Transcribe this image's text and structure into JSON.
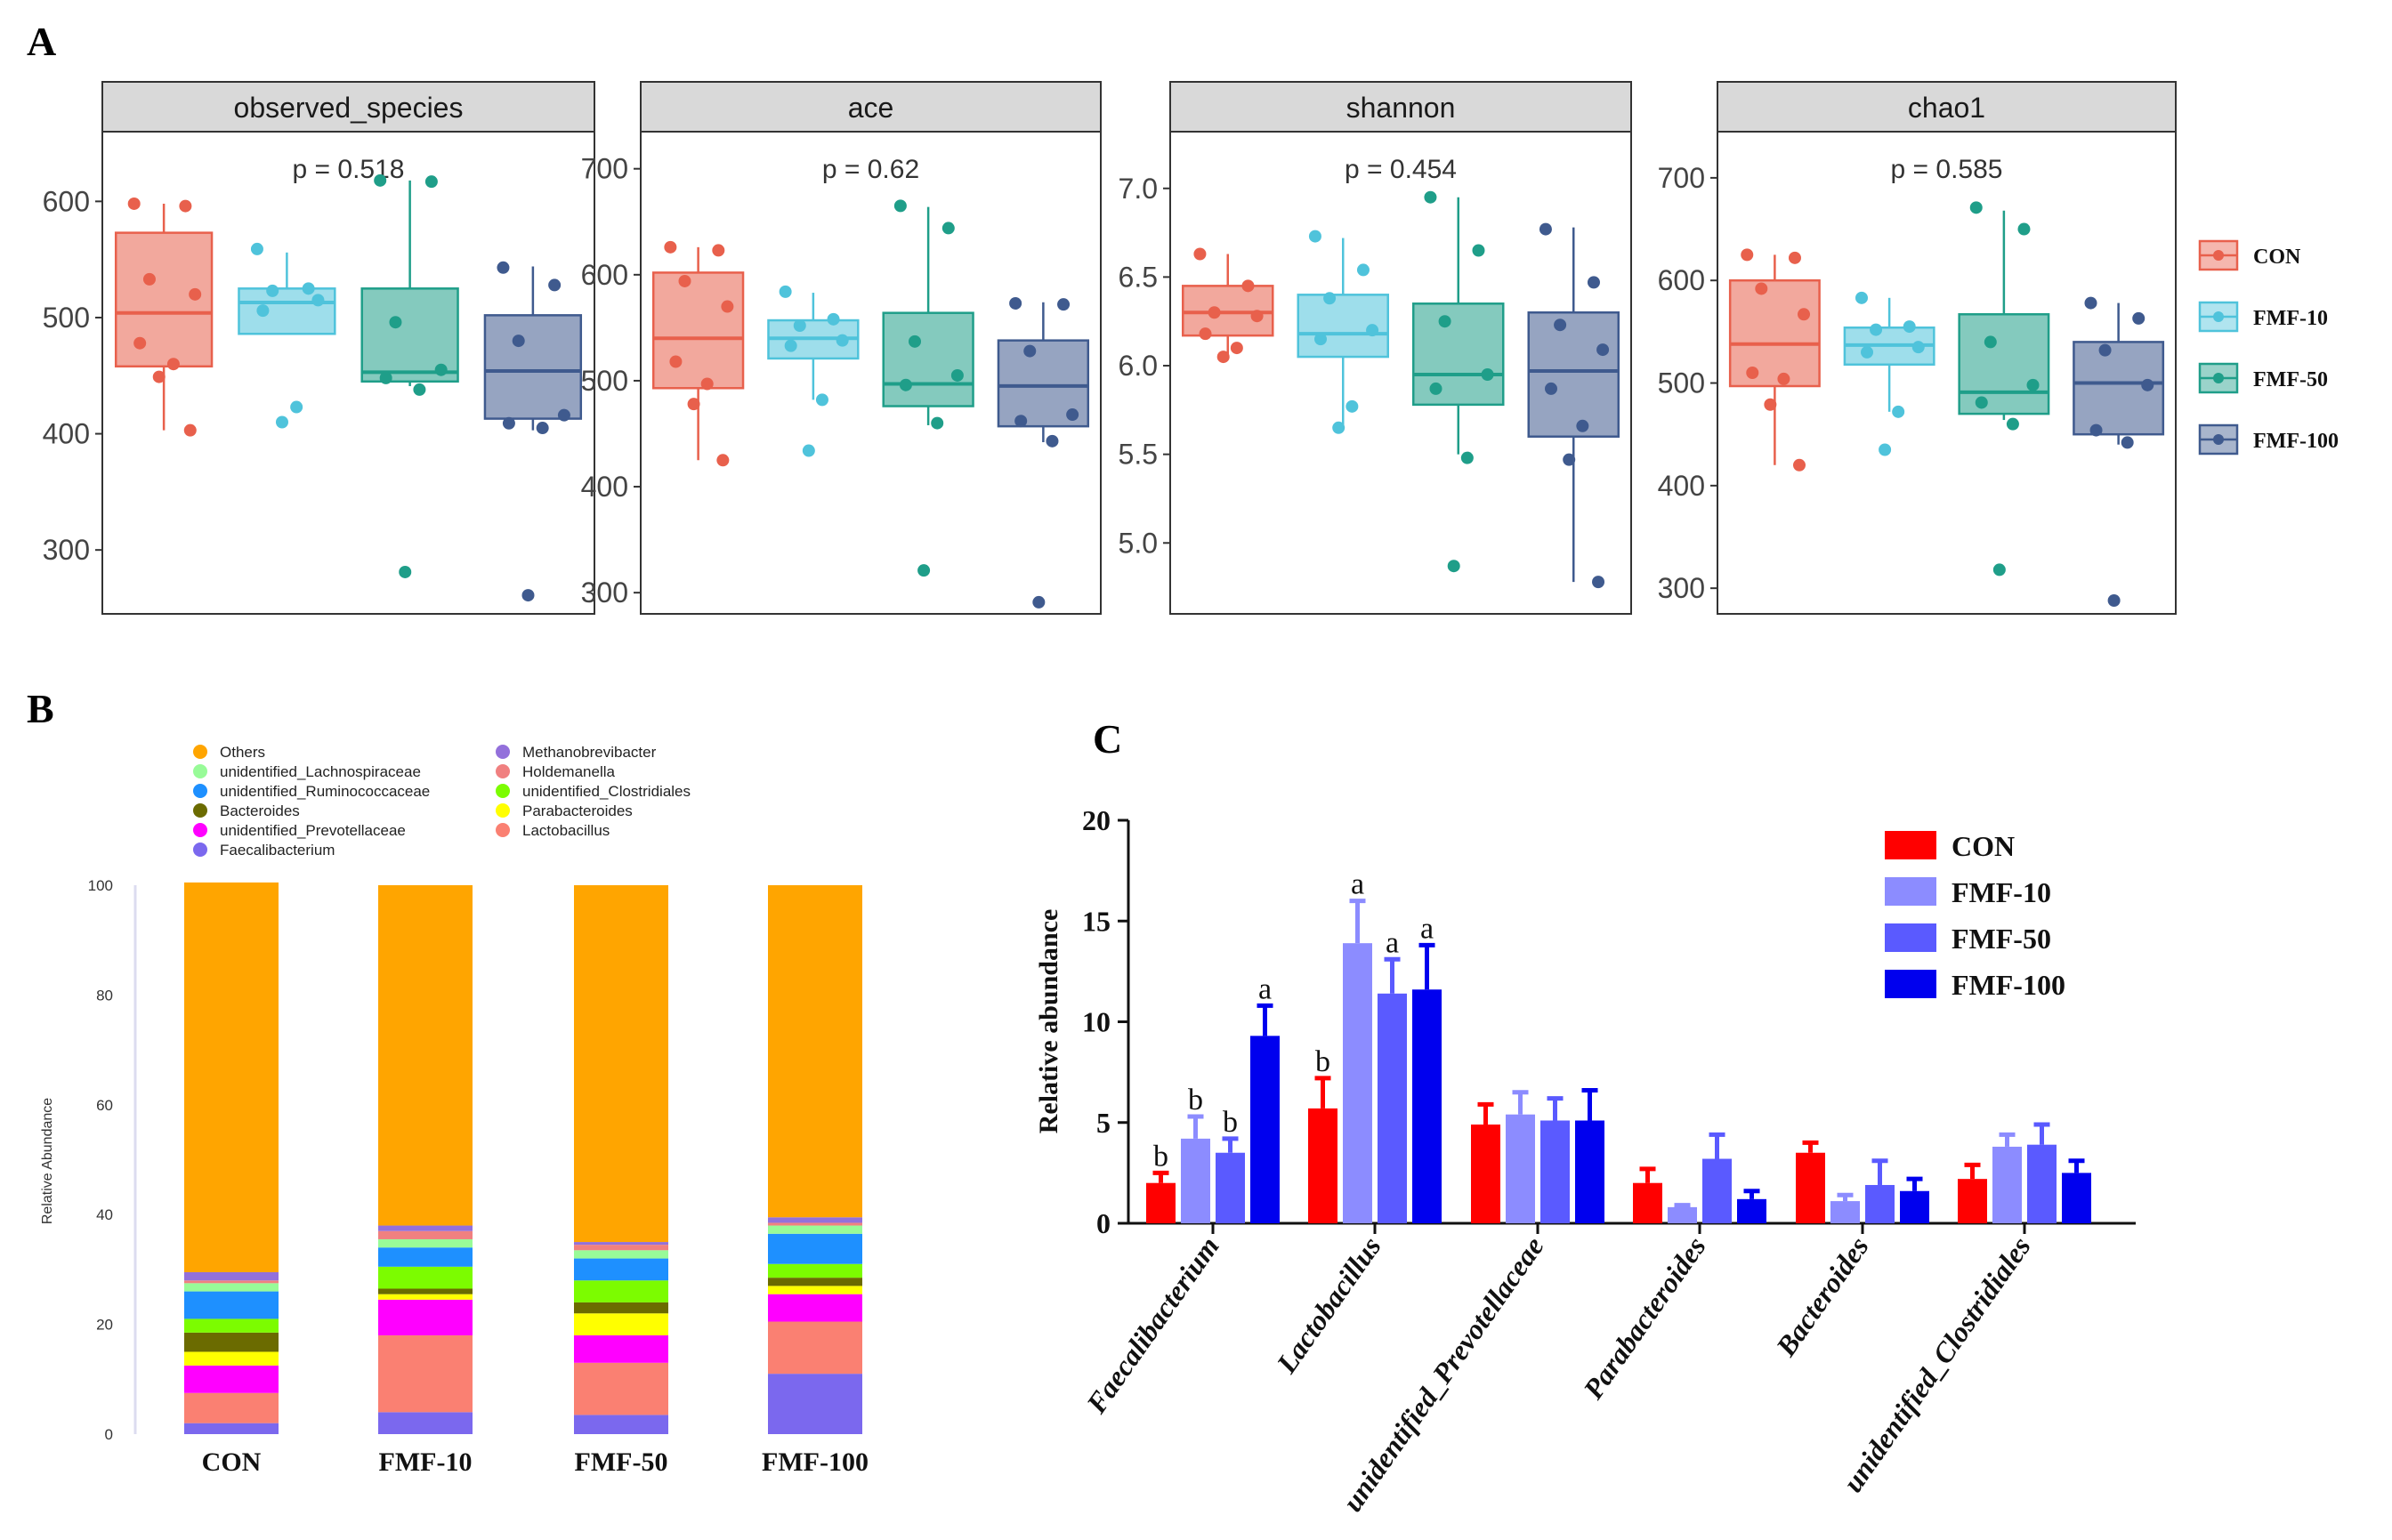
{
  "panel_labels": {
    "a": "A",
    "b": "B",
    "c": "C"
  },
  "colors": {
    "con": "#e8604c",
    "fmf10": "#4fc3db",
    "fmf50": "#1f9e89",
    "fmf100": "#3f5a8e",
    "strip_bg": "#d9d9d9",
    "orange_others": "#ffa500",
    "bar_con": "#ff0000",
    "bar_fmf10": "#8c8cff",
    "bar_fmf50": "#5a5aff",
    "bar_fmf100": "#0000ee"
  },
  "panel_a_legend": [
    "CON",
    "FMF-10",
    "FMF-50",
    "FMF-100"
  ],
  "chart_data": [
    {
      "type": "boxplot",
      "title": "observed_species",
      "pvalue": "p = 0.518",
      "ylim": [
        245,
        660
      ],
      "yticks": [
        300,
        400,
        500,
        600
      ],
      "groups": [
        {
          "name": "CON",
          "min": 403,
          "q1": 458,
          "median": 504,
          "q3": 573,
          "max": 598,
          "points": [
            598,
            596,
            533,
            520,
            478,
            460,
            449,
            403
          ]
        },
        {
          "name": "FMF-10",
          "min": 486,
          "q1": 486,
          "median": 513,
          "q3": 525,
          "max": 556,
          "points": [
            559,
            525,
            523,
            515,
            506,
            423,
            410
          ]
        },
        {
          "name": "FMF-50",
          "min": 441,
          "q1": 445,
          "median": 453,
          "q3": 525,
          "max": 618,
          "points": [
            618,
            617,
            496,
            455,
            448,
            438,
            281
          ]
        },
        {
          "name": "FMF-100",
          "min": 403,
          "q1": 413,
          "median": 454,
          "q3": 502,
          "max": 544,
          "points": [
            543,
            528,
            480,
            416,
            409,
            405,
            261
          ]
        }
      ]
    },
    {
      "type": "boxplot",
      "title": "ace",
      "pvalue": "p = 0.62",
      "ylim": [
        280,
        735
      ],
      "yticks": [
        300,
        400,
        500,
        600,
        700
      ],
      "groups": [
        {
          "name": "CON",
          "min": 425,
          "q1": 493,
          "median": 540,
          "q3": 602,
          "max": 626,
          "points": [
            626,
            623,
            594,
            570,
            518,
            497,
            478,
            425
          ]
        },
        {
          "name": "FMF-10",
          "min": 482,
          "q1": 521,
          "median": 540,
          "q3": 557,
          "max": 583,
          "points": [
            584,
            558,
            552,
            538,
            533,
            482,
            434
          ]
        },
        {
          "name": "FMF-50",
          "min": 458,
          "q1": 476,
          "median": 497,
          "q3": 564,
          "max": 664,
          "points": [
            665,
            644,
            537,
            505,
            496,
            460,
            321
          ]
        },
        {
          "name": "FMF-100",
          "min": 442,
          "q1": 457,
          "median": 495,
          "q3": 538,
          "max": 574,
          "points": [
            573,
            572,
            528,
            468,
            462,
            443,
            291
          ]
        }
      ]
    },
    {
      "type": "boxplot",
      "title": "shannon",
      "pvalue": "p = 0.454",
      "ylim": [
        4.6,
        7.32
      ],
      "yticks": [
        "5.0",
        "5.5",
        "6.0",
        "6.5",
        "7.0"
      ],
      "groups": [
        {
          "name": "CON",
          "min": 6.05,
          "q1": 6.17,
          "median": 6.3,
          "q3": 6.45,
          "max": 6.63,
          "points": [
            6.63,
            6.45,
            6.3,
            6.28,
            6.18,
            6.1,
            6.05
          ]
        },
        {
          "name": "FMF-10",
          "min": 5.65,
          "q1": 6.05,
          "median": 6.18,
          "q3": 6.4,
          "max": 6.72,
          "points": [
            6.73,
            6.54,
            6.38,
            6.2,
            6.15,
            5.77,
            5.65
          ]
        },
        {
          "name": "FMF-50",
          "min": 5.5,
          "q1": 5.78,
          "median": 5.95,
          "q3": 6.35,
          "max": 6.95,
          "points": [
            6.95,
            6.65,
            6.25,
            5.95,
            5.87,
            5.48,
            4.87
          ]
        },
        {
          "name": "FMF-100",
          "min": 4.78,
          "q1": 5.6,
          "median": 5.97,
          "q3": 6.3,
          "max": 6.78,
          "points": [
            6.77,
            6.47,
            6.23,
            6.09,
            5.87,
            5.66,
            5.47,
            4.78
          ]
        }
      ]
    },
    {
      "type": "boxplot",
      "title": "chao1",
      "pvalue": "p = 0.585",
      "ylim": [
        275,
        745
      ],
      "yticks": [
        300,
        400,
        500,
        600,
        700
      ],
      "groups": [
        {
          "name": "CON",
          "min": 420,
          "q1": 497,
          "median": 538,
          "q3": 600,
          "max": 625,
          "points": [
            625,
            622,
            592,
            567,
            510,
            504,
            479,
            420
          ]
        },
        {
          "name": "FMF-10",
          "min": 472,
          "q1": 518,
          "median": 537,
          "q3": 554,
          "max": 583,
          "points": [
            583,
            555,
            552,
            535,
            530,
            472,
            435
          ]
        },
        {
          "name": "FMF-50",
          "min": 464,
          "q1": 470,
          "median": 491,
          "q3": 567,
          "max": 668,
          "points": [
            671,
            650,
            540,
            498,
            481,
            460,
            318
          ]
        },
        {
          "name": "FMF-100",
          "min": 440,
          "q1": 450,
          "median": 500,
          "q3": 540,
          "max": 578,
          "points": [
            578,
            563,
            532,
            498,
            454,
            442,
            288
          ]
        }
      ]
    },
    {
      "type": "stacked_bar",
      "ylabel": "Relative Abundance",
      "ylim": [
        0,
        100
      ],
      "yticks": [
        0,
        20,
        40,
        60,
        80,
        100
      ],
      "categories": [
        "CON",
        "FMF-10",
        "FMF-50",
        "FMF-100"
      ],
      "legend": [
        "Others",
        "unidentified_Lachnospiraceae",
        "unidentified_Ruminococcaceae",
        "Bacteroides",
        "unidentified_Prevotellaceae",
        "Faecalibacterium",
        "Methanobrevibacter",
        "Holdemanella",
        "unidentified_Clostridiales",
        "Parabacteroides",
        "Lactobacillus"
      ],
      "legend_colors": {
        "Others": "#ffa500",
        "unidentified_Lachnospiraceae": "#98fb98",
        "unidentified_Ruminococcaceae": "#1e90ff",
        "Bacteroides": "#6b6b00",
        "unidentified_Prevotellaceae": "#ff00ff",
        "Faecalibacterium": "#7b68ee",
        "Methanobrevibacter": "#9370db",
        "Holdemanella": "#f08080",
        "unidentified_Clostridiales": "#7cfc00",
        "Parabacteroides": "#ffff00",
        "Lactobacillus": "#fa8072"
      },
      "series_stack_order": [
        "Faecalibacterium",
        "Lactobacillus",
        "unidentified_Prevotellaceae",
        "Parabacteroides",
        "Bacteroides",
        "unidentified_Clostridiales",
        "unidentified_Ruminococcaceae",
        "unidentified_Lachnospiraceae",
        "Holdemanella",
        "Methanobrevibacter",
        "Others"
      ],
      "series": [
        {
          "name": "Faecalibacterium",
          "values": [
            2.0,
            4.0,
            3.5,
            11.0
          ]
        },
        {
          "name": "Lactobacillus",
          "values": [
            5.5,
            14.0,
            9.5,
            9.5
          ]
        },
        {
          "name": "unidentified_Prevotellaceae",
          "values": [
            5.0,
            6.5,
            5.0,
            5.0
          ]
        },
        {
          "name": "Parabacteroides",
          "values": [
            2.5,
            1.0,
            4.0,
            1.5
          ]
        },
        {
          "name": "Bacteroides",
          "values": [
            3.5,
            1.0,
            2.0,
            1.5
          ]
        },
        {
          "name": "unidentified_Clostridiales",
          "values": [
            2.5,
            4.0,
            4.0,
            2.5
          ]
        },
        {
          "name": "unidentified_Ruminococcaceae",
          "values": [
            5.0,
            3.5,
            4.0,
            5.5
          ]
        },
        {
          "name": "unidentified_Lachnospiraceae",
          "values": [
            1.5,
            1.5,
            1.5,
            1.5
          ]
        },
        {
          "name": "Holdemanella",
          "values": [
            0.5,
            1.5,
            1.0,
            0.5
          ]
        },
        {
          "name": "Methanobrevibacter",
          "values": [
            1.5,
            1.0,
            0.5,
            1.0
          ]
        },
        {
          "name": "Others",
          "values": [
            71.0,
            62.0,
            65.0,
            60.5
          ]
        }
      ]
    },
    {
      "type": "grouped_bar",
      "ylabel": "Relative abundance",
      "ylim": [
        0,
        20
      ],
      "yticks": [
        0,
        5,
        10,
        15,
        20
      ],
      "categories": [
        "Faecalibacterium",
        "Lactobacillus",
        "unidentified_Prevotellaceae",
        "Parabacteroides",
        "Bacteroides",
        "unidentified_Clostridiales"
      ],
      "legend": [
        "CON",
        "FMF-10",
        "FMF-50",
        "FMF-100"
      ],
      "series": [
        {
          "name": "CON",
          "values": [
            2.0,
            5.7,
            4.9,
            2.0,
            3.5,
            2.2
          ],
          "errors": [
            0.5,
            1.5,
            1.0,
            0.7,
            0.5,
            0.7
          ],
          "labels": [
            "b",
            "b",
            "",
            "",
            "",
            ""
          ]
        },
        {
          "name": "FMF-10",
          "values": [
            4.2,
            13.9,
            5.4,
            0.8,
            1.1,
            3.8
          ],
          "errors": [
            1.1,
            2.1,
            1.1,
            0.1,
            0.3,
            0.6
          ],
          "labels": [
            "b",
            "a",
            "",
            "",
            "",
            ""
          ]
        },
        {
          "name": "FMF-50",
          "values": [
            3.5,
            11.4,
            5.1,
            3.2,
            1.9,
            3.9
          ],
          "errors": [
            0.7,
            1.7,
            1.1,
            1.2,
            1.2,
            1.0
          ],
          "labels": [
            "b",
            "a",
            "",
            "",
            "",
            ""
          ]
        },
        {
          "name": "FMF-100",
          "values": [
            9.3,
            11.6,
            5.1,
            1.2,
            1.6,
            2.5
          ],
          "errors": [
            1.5,
            2.2,
            1.5,
            0.4,
            0.6,
            0.6
          ],
          "labels": [
            "a",
            "a",
            "",
            "",
            "",
            ""
          ]
        }
      ]
    }
  ]
}
